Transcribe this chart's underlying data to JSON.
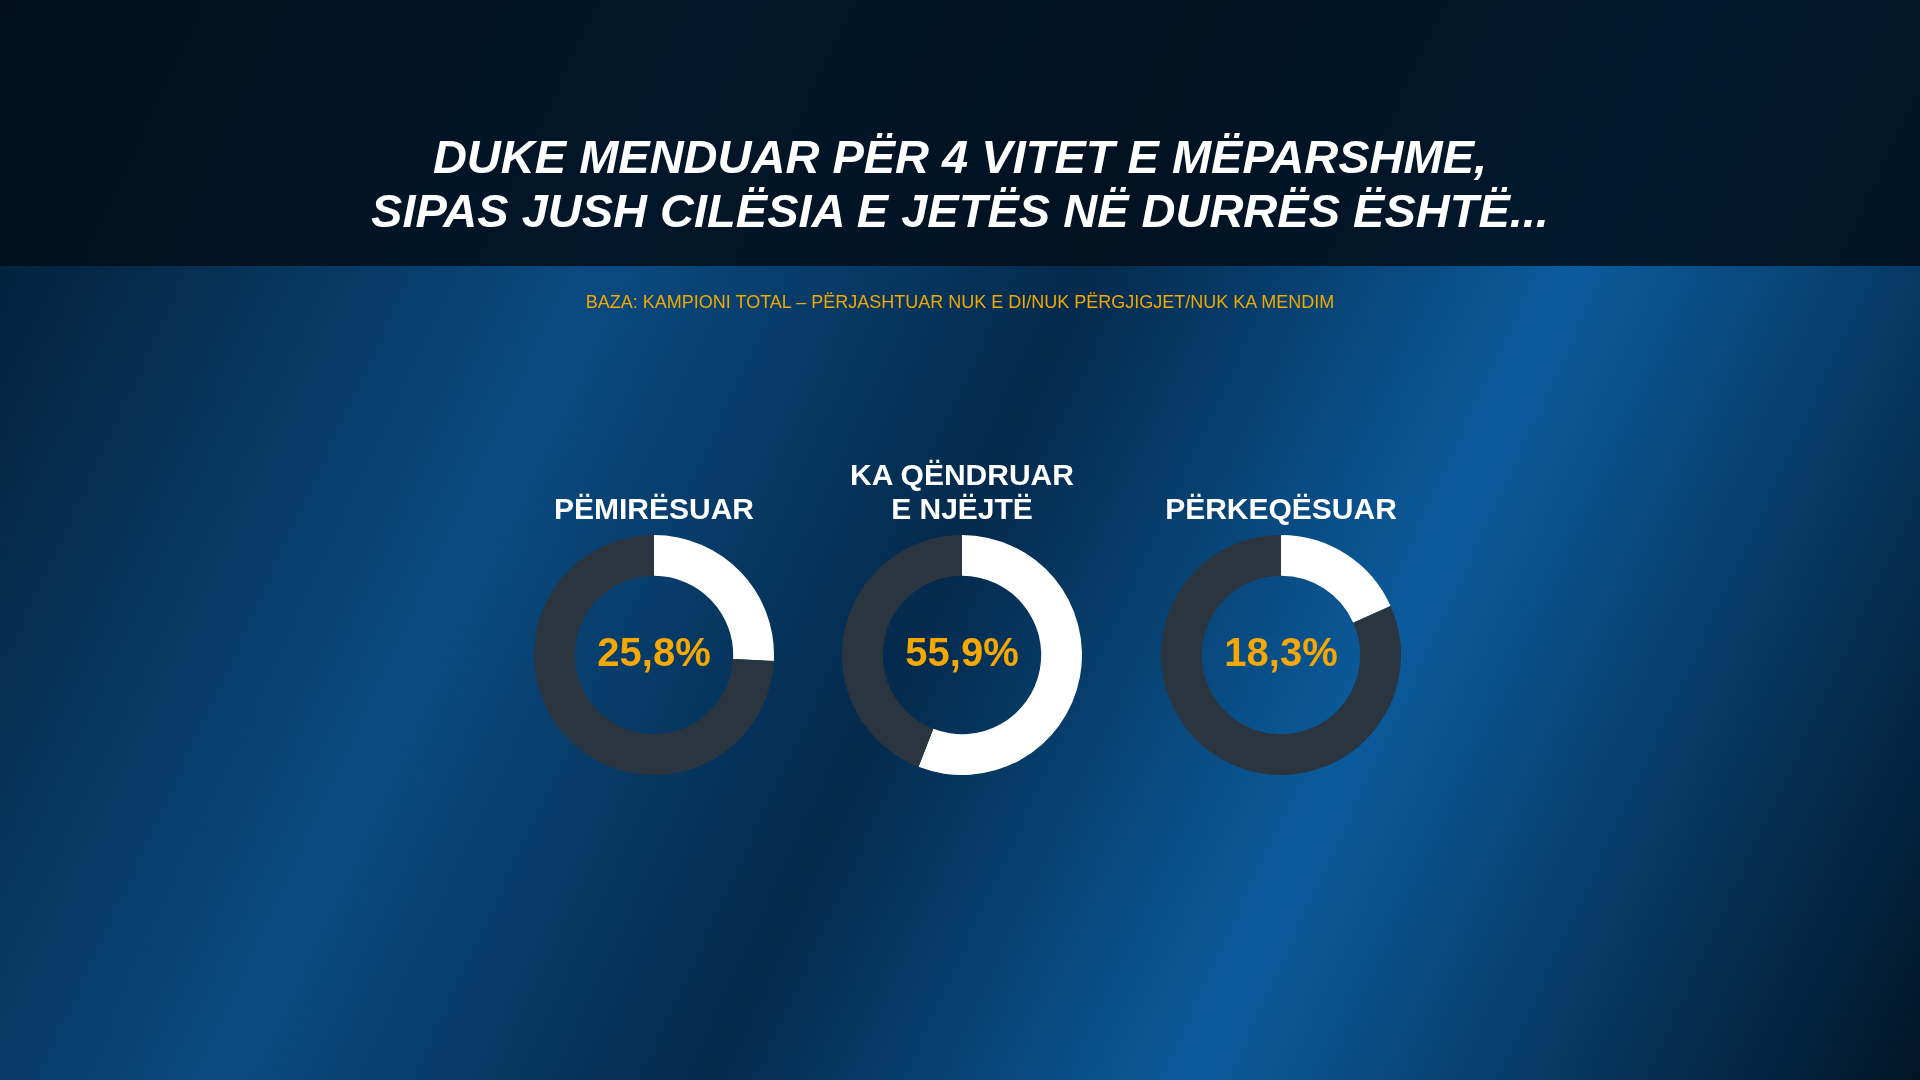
{
  "chart_data": [
    {
      "type": "other",
      "title": "DUKE MENDUAR PËR 4 VITET E MËPARSHME,\nSIPAS JUSH CILËSIA E JETËS NË DURRËS ËSHTË...",
      "subtitle": "BAZA: KAMPIONI TOTAL – PËRJASHTUAR NUK E DI/NUK PËRGJIGJET/NUK KA MENDIM"
    },
    {
      "type": "donut",
      "title": "PËMIRËSUAR",
      "categories": [
        null,
        null
      ],
      "values": [
        25.8,
        74.2
      ],
      "colors": [
        "#ffffff",
        "#2b3540"
      ],
      "value_labels": [
        "25,8%",
        null
      ],
      "legend": false
    },
    {
      "type": "donut",
      "title": "KA QËNDRUAR\nE NJËJTË",
      "categories": [
        null,
        null
      ],
      "values": [
        55.9,
        44.1
      ],
      "colors": [
        "#ffffff",
        "#2b3540"
      ],
      "value_labels": [
        "55,9%",
        null
      ],
      "legend": false
    },
    {
      "type": "donut",
      "title": "PËRKEQËSUAR",
      "categories": [
        null,
        null
      ],
      "values": [
        18.3,
        81.7
      ],
      "colors": [
        "#ffffff",
        "#2b3540"
      ],
      "value_labels": [
        "18,3%",
        null
      ],
      "legend": false
    }
  ]
}
